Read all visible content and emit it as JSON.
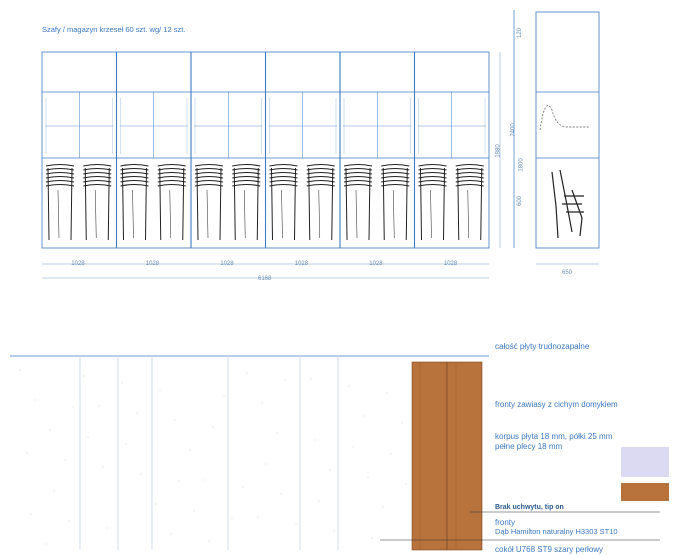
{
  "top_drawing": {
    "title": "Szafy / magazyn krzeseł 60 szt. wg/ 12 szt.",
    "module_width_labels": [
      "1028",
      "1028",
      "1028",
      "1028",
      "1028",
      "1028"
    ],
    "total_width_label": "6168",
    "front_height_label": "1880"
  },
  "side_drawing": {
    "dimension_labels": [
      "120",
      "2400",
      "1800",
      "600"
    ],
    "depth_label": "650"
  },
  "legend": {
    "heading": "całość płyty trudnozapalne",
    "fronts_note": "fronty zawiasy z cichym domykiem",
    "corpus_note_line1": "korpus płyta 18 mm, półki 25 mm",
    "corpus_note_line2": "pełne plecy 18 mm",
    "lock_note": "Brak uchwytu, tip on",
    "fronts_label": "fronty",
    "fronts_finish": "Dąb Hamilton naturalny H3303 ST10",
    "plinth_note": "cokół U768 ST9 szary perłowy",
    "swatch_colors": {
      "lavender": "#dcd9f2",
      "oak": "#b8733c",
      "oak_dark": "#a86430",
      "line": "#3d7cc4"
    }
  }
}
